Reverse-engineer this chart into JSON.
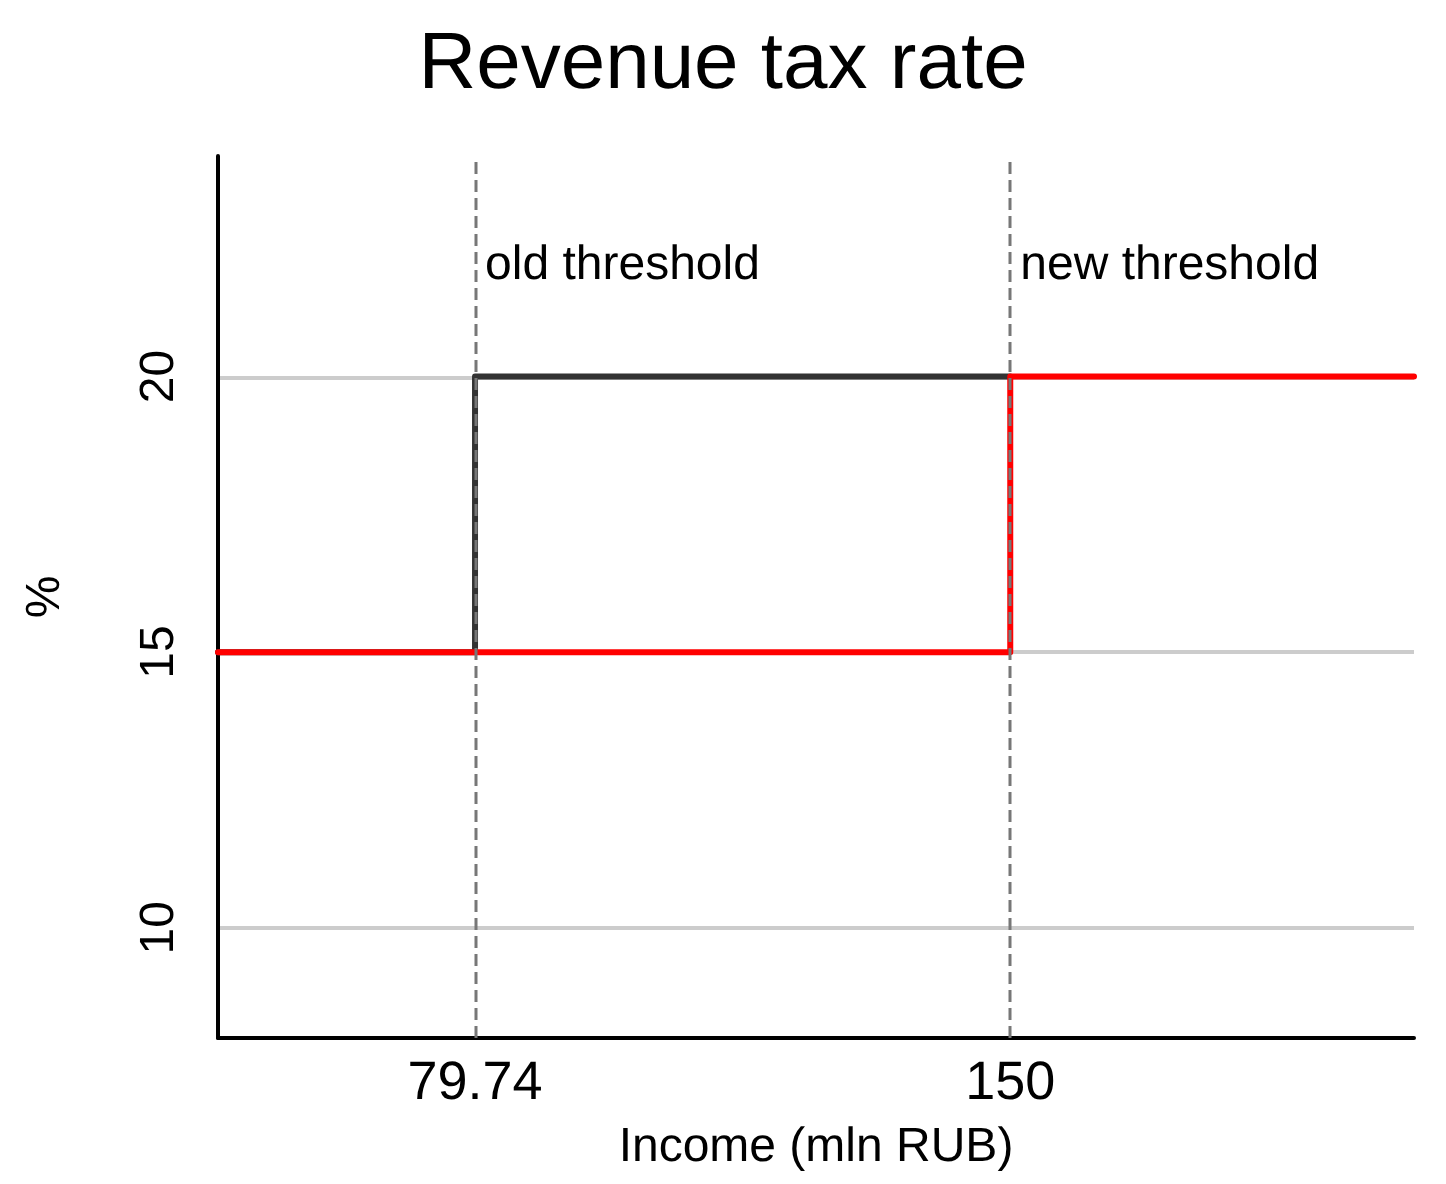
{
  "chart_data": {
    "type": "step",
    "title": "Revenue tax rate",
    "xlabel": "Income (mln RUB)",
    "ylabel": "%",
    "series": [
      {
        "color": "#333333",
        "x": [
          46,
          79.74,
          150
        ],
        "values": [
          15,
          20,
          20
        ]
      },
      {
        "color": "#ff0000",
        "x": [
          46,
          150,
          203
        ],
        "values": [
          15,
          20,
          20
        ]
      }
    ],
    "xlim": [
      46,
      203
    ],
    "xticks": [
      79.74,
      150
    ],
    "ylim": [
      8,
      24
    ],
    "yticks": [
      10,
      15,
      20
    ],
    "grid": "y",
    "marker": "none",
    "line_style": "solid",
    "ref_lines": [
      {
        "axis": "x",
        "value": 79.74,
        "label": "old threshold",
        "color": "#777777",
        "line_style": "dashed"
      },
      {
        "axis": "x",
        "value": 150,
        "label": "new threshold",
        "color": "#777777",
        "line_style": "dashed"
      }
    ]
  }
}
